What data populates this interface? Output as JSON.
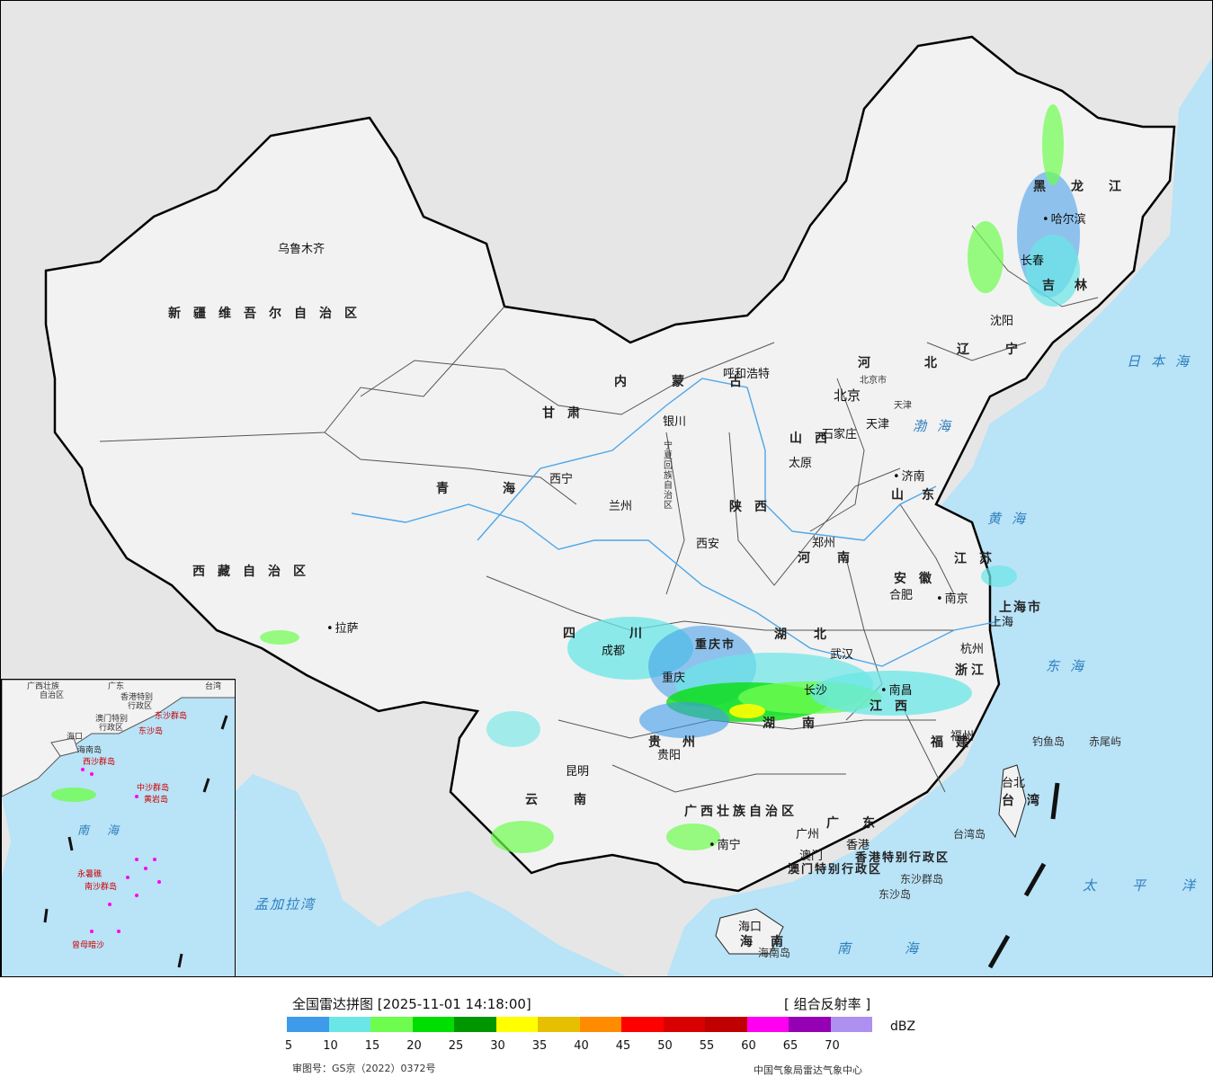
{
  "map": {
    "provinces": [
      "新疆维吾尔自治区",
      "西藏自治区",
      "青海",
      "甘肃",
      "内蒙古",
      "黑龙江",
      "吉林",
      "辽宁",
      "河北",
      "山西",
      "陕西",
      "四川",
      "重庆市",
      "贵州",
      "云南",
      "广西壮族自治区",
      "广东",
      "湖南",
      "湖北",
      "河南",
      "山东",
      "江苏",
      "安徽",
      "浙江",
      "江西",
      "福建",
      "台湾",
      "海南",
      "上海市",
      "香港特别行政区",
      "澳门特别行政区",
      "宁夏回族自治区",
      "北京市",
      "天津"
    ],
    "cities": [
      "乌鲁木齐",
      "拉萨",
      "西宁",
      "兰州",
      "银川",
      "呼和浩特",
      "北京",
      "天津",
      "石家庄",
      "太原",
      "西安",
      "郑州",
      "济南",
      "南京",
      "合肥",
      "上海",
      "杭州",
      "武汉",
      "长沙",
      "南昌",
      "福州",
      "台北",
      "成都",
      "重庆",
      "贵阳",
      "昆明",
      "南宁",
      "广州",
      "香港",
      "澳门",
      "海口",
      "哈尔滨",
      "长春",
      "沈阳"
    ],
    "seas": [
      "日本海",
      "渤海",
      "黄海",
      "东海",
      "太平洋",
      "南海",
      "孟加拉湾"
    ],
    "islands": [
      "钓鱼岛",
      "赤尾屿",
      "台湾岛",
      "东沙群岛",
      "东沙岛",
      "海南岛"
    ],
    "inset_labels": [
      "广西壮族",
      "自治区",
      "广东",
      "香港特别",
      "行政区",
      "澳门特别",
      "行政区",
      "台湾",
      "东沙群岛",
      "东沙岛",
      "海口",
      "海南岛",
      "西沙群岛",
      "中沙群岛",
      "黄岩岛",
      "南海",
      "南沙群岛",
      "永暑礁",
      "曾母暗沙"
    ]
  },
  "legend": {
    "title": "全国雷达拼图 [2025-11-01 14:18:00]",
    "product": "[ 组合反射率 ]",
    "unit": "dBZ",
    "ticks": [
      "5",
      "10",
      "15",
      "20",
      "25",
      "30",
      "35",
      "40",
      "45",
      "50",
      "55",
      "60",
      "65",
      "70"
    ],
    "colors": [
      "#3d9be9",
      "#6ae6e6",
      "#6efd4f",
      "#00de00",
      "#009600",
      "#ffff00",
      "#e6c000",
      "#ff8c00",
      "#ff0000",
      "#d80000",
      "#c00000",
      "#ff00f0",
      "#9600b4",
      "#ad90f0"
    ],
    "review_number": "审图号：GS京（2022）0372号",
    "producer": "中国气象局雷达气象中心"
  }
}
